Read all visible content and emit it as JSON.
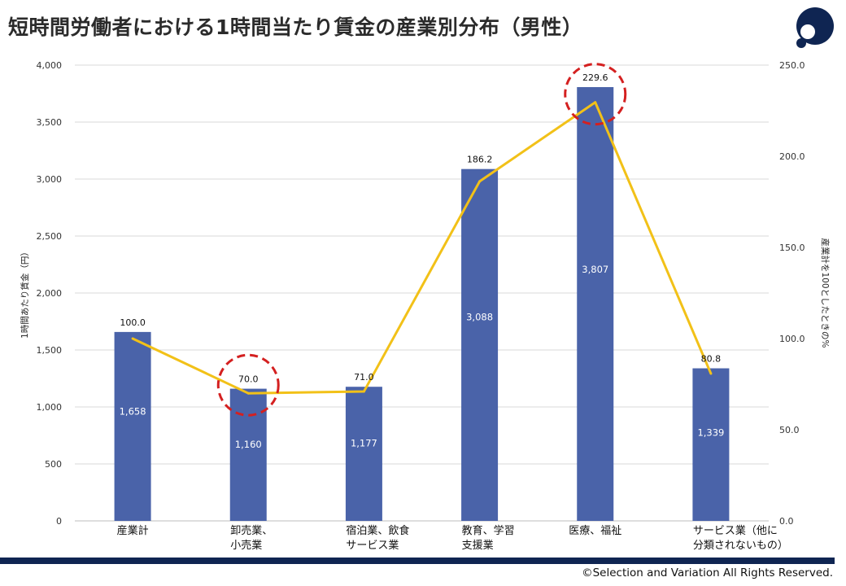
{
  "header": {
    "title": "短時間労働者における1時間当たり賃金の産業別分布（男性）"
  },
  "footer": {
    "copyright": "©Selection and Variation All Rights Reserved."
  },
  "colors": {
    "bar": "#4a63a9",
    "line": "#f2c118",
    "highlight_circle": "#d42020",
    "footer_bar": "#0f2552",
    "logo": "#0f2552"
  },
  "chart_data": {
    "type": "bar",
    "title": "短時間労働者における1時間当たり賃金の産業別分布（男性）",
    "categories": [
      [
        "産業計"
      ],
      [
        "卸売業、",
        "小売業"
      ],
      [
        "宿泊業、飲食",
        "サービス業"
      ],
      [
        "教育、学習",
        "支援業"
      ],
      [
        "医療、福祉"
      ],
      [
        "サービス業（他に",
        "分類されないもの）"
      ]
    ],
    "series": [
      {
        "axis": "left",
        "type": "bar",
        "values": [
          1658,
          1160,
          1177,
          3088,
          3807,
          1339
        ],
        "labels": [
          "1,658",
          "1,160",
          "1,177",
          "3,088",
          "3,807",
          "1,339"
        ]
      },
      {
        "axis": "right",
        "type": "line",
        "values": [
          100.0,
          70.0,
          71.0,
          186.2,
          229.6,
          80.8
        ],
        "labels": [
          "100.0",
          "70.0",
          "71.0",
          "186.2",
          "229.6",
          "80.8"
        ]
      }
    ],
    "ylabel": "1時間あたり賃金（円）",
    "y2label": "産業計を100としたときの%",
    "ylim": [
      0,
      4000
    ],
    "y2lim": [
      0,
      250
    ],
    "yticks": [
      "0",
      "500",
      "1,000",
      "1,500",
      "2,000",
      "2,500",
      "3,000",
      "3,500",
      "4,000"
    ],
    "y2ticks": [
      "0.0",
      "50.0",
      "100.0",
      "150.0",
      "200.0",
      "250.0"
    ],
    "highlighted_categories": [
      1,
      4
    ],
    "grid": true,
    "legend": "none"
  }
}
